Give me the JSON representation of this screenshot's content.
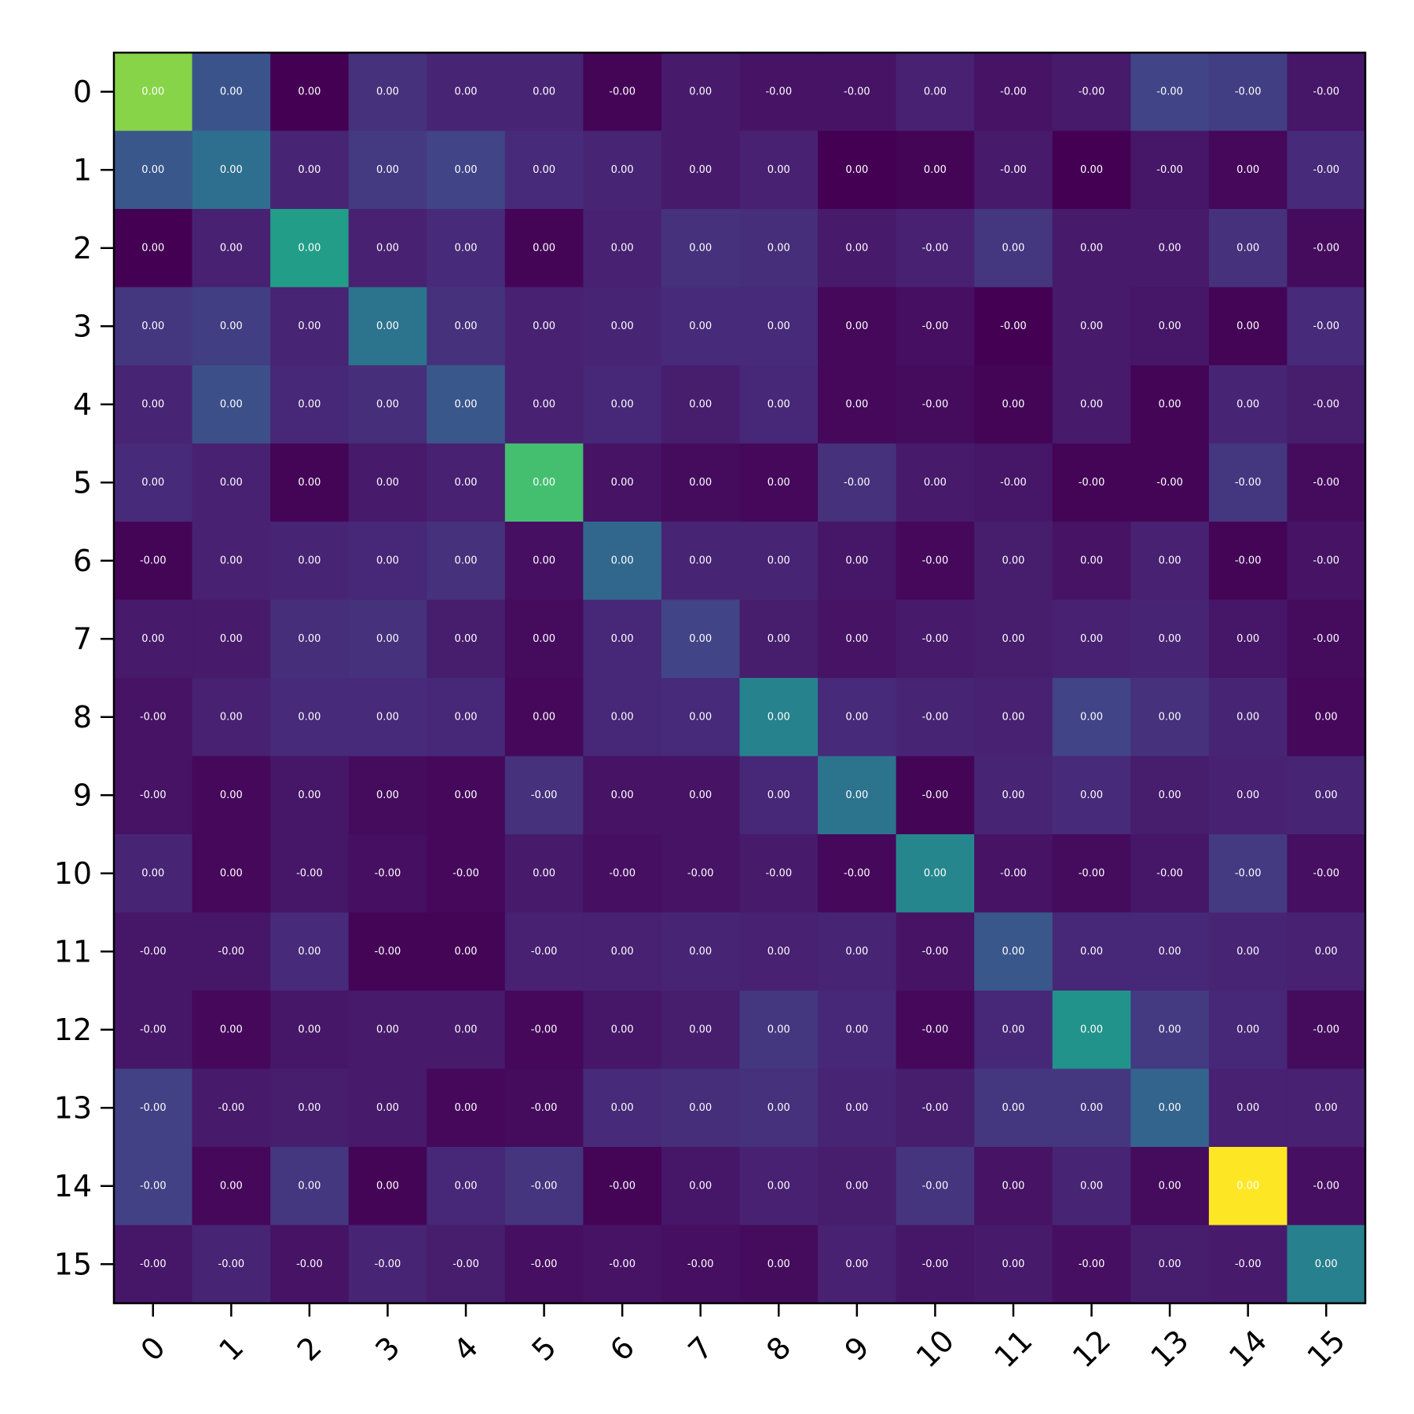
{
  "chart_data": {
    "type": "heatmap",
    "title": "",
    "xlabel": "",
    "ylabel": "",
    "colormap": "viridis",
    "value_range": [
      0,
      1
    ],
    "x_categories": [
      "0",
      "1",
      "2",
      "3",
      "4",
      "5",
      "6",
      "7",
      "8",
      "9",
      "10",
      "11",
      "12",
      "13",
      "14",
      "15"
    ],
    "y_categories": [
      "0",
      "1",
      "2",
      "3",
      "4",
      "5",
      "6",
      "7",
      "8",
      "9",
      "10",
      "11",
      "12",
      "13",
      "14",
      "15"
    ],
    "cell_labels": [
      [
        "0.00",
        "0.00",
        "0.00",
        "0.00",
        "0.00",
        "0.00",
        "-0.00",
        "0.00",
        "-0.00",
        "-0.00",
        "0.00",
        "-0.00",
        "-0.00",
        "-0.00",
        "-0.00",
        "-0.00"
      ],
      [
        "0.00",
        "0.00",
        "0.00",
        "0.00",
        "0.00",
        "0.00",
        "0.00",
        "0.00",
        "0.00",
        "0.00",
        "0.00",
        "-0.00",
        "0.00",
        "-0.00",
        "0.00",
        "-0.00"
      ],
      [
        "0.00",
        "0.00",
        "0.00",
        "0.00",
        "0.00",
        "0.00",
        "0.00",
        "0.00",
        "0.00",
        "0.00",
        "-0.00",
        "0.00",
        "0.00",
        "0.00",
        "0.00",
        "-0.00"
      ],
      [
        "0.00",
        "0.00",
        "0.00",
        "0.00",
        "0.00",
        "0.00",
        "0.00",
        "0.00",
        "0.00",
        "0.00",
        "-0.00",
        "-0.00",
        "0.00",
        "0.00",
        "0.00",
        "-0.00"
      ],
      [
        "0.00",
        "0.00",
        "0.00",
        "0.00",
        "0.00",
        "0.00",
        "0.00",
        "0.00",
        "0.00",
        "0.00",
        "-0.00",
        "0.00",
        "0.00",
        "0.00",
        "0.00",
        "-0.00"
      ],
      [
        "0.00",
        "0.00",
        "0.00",
        "0.00",
        "0.00",
        "0.00",
        "0.00",
        "0.00",
        "0.00",
        "-0.00",
        "0.00",
        "-0.00",
        "-0.00",
        "-0.00",
        "-0.00",
        "-0.00"
      ],
      [
        "-0.00",
        "0.00",
        "0.00",
        "0.00",
        "0.00",
        "0.00",
        "0.00",
        "0.00",
        "0.00",
        "0.00",
        "-0.00",
        "0.00",
        "0.00",
        "0.00",
        "-0.00",
        "-0.00"
      ],
      [
        "0.00",
        "0.00",
        "0.00",
        "0.00",
        "0.00",
        "0.00",
        "0.00",
        "0.00",
        "0.00",
        "0.00",
        "-0.00",
        "0.00",
        "0.00",
        "0.00",
        "0.00",
        "-0.00"
      ],
      [
        "-0.00",
        "0.00",
        "0.00",
        "0.00",
        "0.00",
        "0.00",
        "0.00",
        "0.00",
        "0.00",
        "0.00",
        "-0.00",
        "0.00",
        "0.00",
        "0.00",
        "0.00",
        "0.00"
      ],
      [
        "-0.00",
        "0.00",
        "0.00",
        "0.00",
        "0.00",
        "-0.00",
        "0.00",
        "0.00",
        "0.00",
        "0.00",
        "-0.00",
        "0.00",
        "0.00",
        "0.00",
        "0.00",
        "0.00"
      ],
      [
        "0.00",
        "0.00",
        "-0.00",
        "-0.00",
        "-0.00",
        "0.00",
        "-0.00",
        "-0.00",
        "-0.00",
        "-0.00",
        "0.00",
        "-0.00",
        "-0.00",
        "-0.00",
        "-0.00",
        "-0.00"
      ],
      [
        "-0.00",
        "-0.00",
        "0.00",
        "-0.00",
        "0.00",
        "-0.00",
        "0.00",
        "0.00",
        "0.00",
        "0.00",
        "-0.00",
        "0.00",
        "0.00",
        "0.00",
        "0.00",
        "0.00"
      ],
      [
        "-0.00",
        "0.00",
        "0.00",
        "0.00",
        "0.00",
        "-0.00",
        "0.00",
        "0.00",
        "0.00",
        "0.00",
        "-0.00",
        "0.00",
        "0.00",
        "0.00",
        "0.00",
        "-0.00"
      ],
      [
        "-0.00",
        "-0.00",
        "0.00",
        "0.00",
        "0.00",
        "-0.00",
        "0.00",
        "0.00",
        "0.00",
        "0.00",
        "-0.00",
        "0.00",
        "0.00",
        "0.00",
        "0.00",
        "0.00"
      ],
      [
        "-0.00",
        "0.00",
        "0.00",
        "0.00",
        "0.00",
        "-0.00",
        "-0.00",
        "0.00",
        "0.00",
        "0.00",
        "-0.00",
        "0.00",
        "0.00",
        "0.00",
        "0.00",
        "-0.00"
      ],
      [
        "-0.00",
        "-0.00",
        "-0.00",
        "-0.00",
        "-0.00",
        "-0.00",
        "-0.00",
        "-0.00",
        "0.00",
        "0.00",
        "-0.00",
        "0.00",
        "-0.00",
        "0.00",
        "-0.00",
        "0.00"
      ]
    ],
    "color_values": [
      [
        0.82,
        0.26,
        0.0,
        0.14,
        0.1,
        0.1,
        0.01,
        0.07,
        0.05,
        0.05,
        0.09,
        0.05,
        0.07,
        0.2,
        0.18,
        0.06
      ],
      [
        0.27,
        0.36,
        0.1,
        0.17,
        0.2,
        0.12,
        0.1,
        0.07,
        0.09,
        0.0,
        0.01,
        0.07,
        0.0,
        0.06,
        0.02,
        0.12
      ],
      [
        0.0,
        0.09,
        0.55,
        0.09,
        0.12,
        0.01,
        0.09,
        0.14,
        0.13,
        0.07,
        0.09,
        0.16,
        0.07,
        0.07,
        0.14,
        0.03
      ],
      [
        0.16,
        0.18,
        0.1,
        0.38,
        0.14,
        0.09,
        0.1,
        0.12,
        0.12,
        0.02,
        0.04,
        0.0,
        0.07,
        0.06,
        0.01,
        0.12
      ],
      [
        0.1,
        0.24,
        0.11,
        0.13,
        0.27,
        0.09,
        0.11,
        0.08,
        0.11,
        0.02,
        0.03,
        0.01,
        0.07,
        0.01,
        0.1,
        0.08
      ],
      [
        0.12,
        0.09,
        0.01,
        0.07,
        0.09,
        0.7,
        0.05,
        0.03,
        0.02,
        0.14,
        0.07,
        0.06,
        0.01,
        0.01,
        0.16,
        0.03
      ],
      [
        0.01,
        0.09,
        0.1,
        0.11,
        0.14,
        0.04,
        0.33,
        0.1,
        0.1,
        0.06,
        0.02,
        0.08,
        0.05,
        0.09,
        0.01,
        0.05
      ],
      [
        0.07,
        0.07,
        0.13,
        0.14,
        0.08,
        0.03,
        0.11,
        0.2,
        0.08,
        0.05,
        0.07,
        0.08,
        0.09,
        0.1,
        0.06,
        0.03
      ],
      [
        0.05,
        0.09,
        0.12,
        0.12,
        0.11,
        0.02,
        0.11,
        0.12,
        0.44,
        0.12,
        0.1,
        0.09,
        0.2,
        0.14,
        0.1,
        0.02
      ],
      [
        0.05,
        0.02,
        0.06,
        0.03,
        0.02,
        0.14,
        0.05,
        0.05,
        0.11,
        0.38,
        0.01,
        0.1,
        0.12,
        0.08,
        0.09,
        0.1
      ],
      [
        0.1,
        0.02,
        0.06,
        0.04,
        0.02,
        0.07,
        0.04,
        0.05,
        0.07,
        0.02,
        0.46,
        0.05,
        0.03,
        0.06,
        0.17,
        0.04
      ],
      [
        0.06,
        0.06,
        0.12,
        0.01,
        0.01,
        0.09,
        0.09,
        0.1,
        0.09,
        0.1,
        0.05,
        0.27,
        0.11,
        0.11,
        0.1,
        0.09
      ],
      [
        0.06,
        0.02,
        0.06,
        0.07,
        0.07,
        0.02,
        0.06,
        0.08,
        0.16,
        0.11,
        0.02,
        0.11,
        0.51,
        0.17,
        0.11,
        0.03
      ],
      [
        0.19,
        0.07,
        0.08,
        0.07,
        0.02,
        0.03,
        0.12,
        0.13,
        0.14,
        0.1,
        0.08,
        0.16,
        0.16,
        0.32,
        0.09,
        0.09
      ],
      [
        0.19,
        0.02,
        0.16,
        0.01,
        0.11,
        0.15,
        0.01,
        0.06,
        0.09,
        0.08,
        0.15,
        0.05,
        0.1,
        0.03,
        1.0,
        0.04
      ],
      [
        0.06,
        0.1,
        0.05,
        0.1,
        0.08,
        0.04,
        0.05,
        0.04,
        0.03,
        0.09,
        0.06,
        0.07,
        0.04,
        0.08,
        0.07,
        0.43
      ]
    ],
    "grid": false,
    "colorbar": false
  }
}
